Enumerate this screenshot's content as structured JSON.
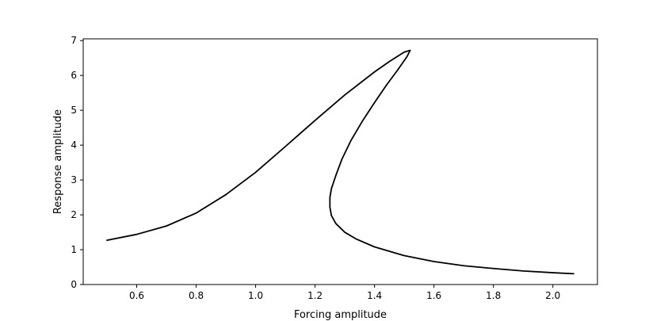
{
  "chart_data": {
    "type": "line",
    "title": "",
    "xlabel": "Forcing amplitude",
    "ylabel": "Response amplitude",
    "xlim": [
      0.42,
      2.15
    ],
    "ylim": [
      0,
      7.05
    ],
    "xticks": [
      0.6,
      0.8,
      1.0,
      1.2,
      1.4,
      1.6,
      1.8,
      2.0
    ],
    "xtick_labels": [
      "0.6",
      "0.8",
      "1.0",
      "1.2",
      "1.4",
      "1.6",
      "1.8",
      "2.0"
    ],
    "yticks": [
      0,
      1,
      2,
      3,
      4,
      5,
      6,
      7
    ],
    "ytick_labels": [
      "0",
      "1",
      "2",
      "3",
      "4",
      "5",
      "6",
      "7"
    ],
    "grid": false,
    "line_color": "#000000",
    "series": [
      {
        "x": [
          0.5,
          0.6,
          0.7,
          0.8,
          0.9,
          1.0,
          1.1,
          1.2,
          1.3,
          1.4,
          1.45,
          1.5,
          1.52,
          1.51,
          1.48,
          1.44,
          1.4,
          1.36,
          1.32,
          1.29,
          1.27,
          1.255,
          1.25,
          1.25,
          1.255,
          1.27,
          1.3,
          1.34,
          1.4,
          1.5,
          1.6,
          1.7,
          1.8,
          1.9,
          2.0,
          2.07
        ],
        "y": [
          1.27,
          1.44,
          1.68,
          2.05,
          2.58,
          3.22,
          3.96,
          4.71,
          5.44,
          6.1,
          6.4,
          6.67,
          6.72,
          6.55,
          6.18,
          5.72,
          5.22,
          4.7,
          4.12,
          3.59,
          3.13,
          2.75,
          2.5,
          2.22,
          1.98,
          1.75,
          1.5,
          1.3,
          1.08,
          0.83,
          0.66,
          0.54,
          0.46,
          0.39,
          0.34,
          0.31
        ]
      }
    ]
  }
}
